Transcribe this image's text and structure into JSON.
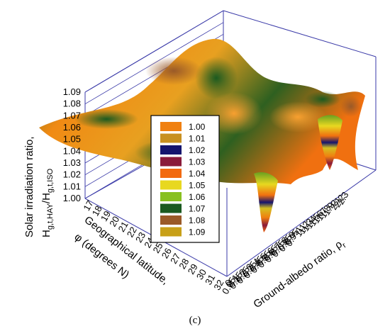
{
  "chart_data": {
    "type": "surface3d",
    "panel_label": "(c)",
    "z_axis": {
      "label_line1": "Solar irradiation ratio,",
      "label_line2": "H",
      "label_sub_a": "g,t,HAY",
      "label_slash": "/H",
      "label_sub_b": "g,t,ISO",
      "ticks": [
        "1.00",
        "1.01",
        "1.02",
        "1.03",
        "1.04",
        "1.05",
        "1.06",
        "1.07",
        "1.08",
        "1.09"
      ],
      "range": [
        1.0,
        1.09
      ]
    },
    "x_axis": {
      "label_line1": "Geographical latitude,",
      "label_line2": "φ (degrees N)",
      "ticks": [
        "17",
        "18",
        "19",
        "20",
        "21",
        "22",
        "23",
        "24",
        "25",
        "26",
        "27",
        "28",
        "29",
        "30",
        "31",
        "32"
      ],
      "range": [
        17,
        32
      ]
    },
    "y_axis": {
      "label": "Ground-albedo ratio, ρ",
      "label_sub": "r",
      "ticks": [
        "0",
        "0.05",
        "0.1",
        "0.15",
        "0.2",
        "0.25",
        "0.3",
        "0.35",
        "0.4",
        "0.45",
        "0.5",
        "0.55",
        "0.6",
        "0.65",
        "0.7",
        "0.75",
        "0.8",
        "0.85",
        "0.9",
        "0.95",
        "1",
        "1.1",
        "1.2",
        "1.3",
        "1.4",
        "1.5",
        "1.6",
        "1.7",
        "1.8",
        "1.9",
        "2",
        "2.1",
        "2.2",
        "2.3"
      ],
      "range": [
        0,
        2.3
      ]
    },
    "legend": {
      "placement": "center",
      "entries": [
        {
          "label": "1.00",
          "color": "#f08010"
        },
        {
          "label": "1.01",
          "color": "#c89020"
        },
        {
          "label": "1.02",
          "color": "#14146e"
        },
        {
          "label": "1.03",
          "color": "#8a1a3a"
        },
        {
          "label": "1.04",
          "color": "#f26a10"
        },
        {
          "label": "1.05",
          "color": "#e8d820"
        },
        {
          "label": "1.06",
          "color": "#88c020"
        },
        {
          "label": "1.07",
          "color": "#1a5a20"
        },
        {
          "label": "1.08",
          "color": "#9a5a28"
        },
        {
          "label": "1.09",
          "color": "#c8a018"
        }
      ]
    }
  }
}
